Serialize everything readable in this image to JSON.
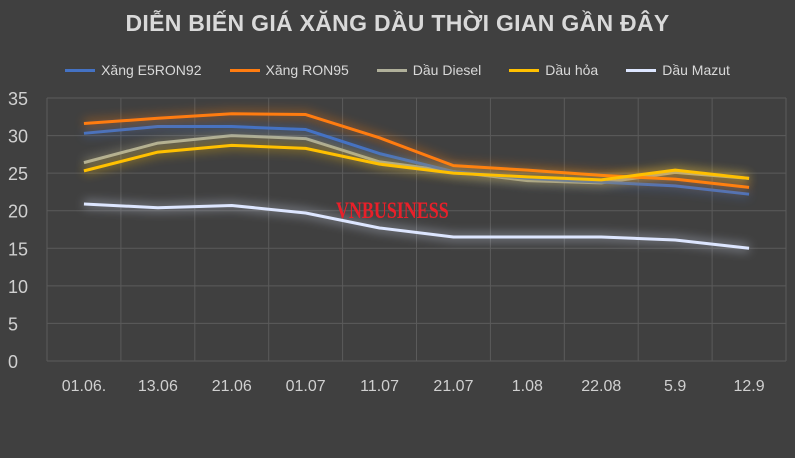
{
  "chart_data": {
    "type": "line",
    "title": "DIỄN BIẾN GIÁ XĂNG DẦU THỜI GIAN GẦN ĐÂY",
    "categories": [
      "01.06.",
      "13.06",
      "21.06",
      "01.07",
      "11.07",
      "21.07",
      "1.08",
      "22.08",
      "5.9",
      "12.9"
    ],
    "ylim": [
      0,
      35
    ],
    "yticks": [
      0,
      5,
      10,
      15,
      20,
      25,
      30,
      35
    ],
    "grid": true,
    "legend_position": "top",
    "series": [
      {
        "name": "Xăng E5RON92",
        "color": "#4472c4",
        "values": [
          30.3,
          31.2,
          31.2,
          30.8,
          27.6,
          25.2,
          24.3,
          23.8,
          23.3,
          22.2
        ]
      },
      {
        "name": "Xăng RON95",
        "color": "#ff7c10",
        "values": [
          31.6,
          32.3,
          32.9,
          32.8,
          29.7,
          26.0,
          25.4,
          24.7,
          24.2,
          23.1
        ]
      },
      {
        "name": "Dầu Diesel",
        "color": "#b0b09a",
        "values": [
          26.4,
          29.0,
          30.0,
          29.6,
          26.5,
          25.2,
          24.0,
          23.7,
          25.1,
          24.3
        ]
      },
      {
        "name": "Dầu hỏa",
        "color": "#ffc000",
        "values": [
          25.3,
          27.8,
          28.7,
          28.3,
          26.2,
          25.0,
          24.5,
          24.1,
          25.4,
          24.3
        ]
      },
      {
        "name": "Dầu Mazut",
        "color": "#dde6ff",
        "values": [
          20.9,
          20.4,
          20.7,
          19.7,
          17.7,
          16.5,
          16.5,
          16.5,
          16.1,
          15.0
        ]
      }
    ]
  },
  "watermark": "VNBUSINESS"
}
